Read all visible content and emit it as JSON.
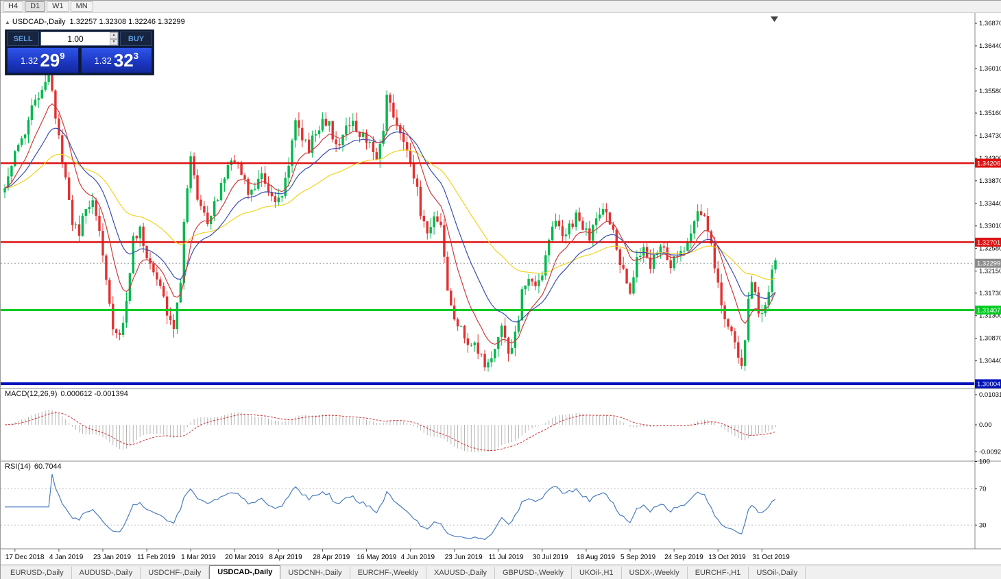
{
  "toolbar": {
    "timeframes": [
      "H4",
      "D1",
      "W1",
      "MN"
    ],
    "active_timeframe": "D1"
  },
  "chart": {
    "collapse_icon": "▲",
    "title": "USDCAD-,Daily",
    "ohlc_text": "1.32257 1.32308 1.32246 1.32299"
  },
  "trade_panel": {
    "sell_label": "SELL",
    "buy_label": "BUY",
    "volume": "1.00",
    "bid": {
      "prefix": "1.32",
      "big": "29",
      "sup": "9"
    },
    "ask": {
      "prefix": "1.32",
      "big": "32",
      "sup": "3"
    }
  },
  "chart_data": {
    "type": "candlestick",
    "symbol": "USDCAD",
    "timeframe": "Daily",
    "price_range": {
      "top": 1.37066,
      "bottom": 1.29913
    },
    "candle_count": 229,
    "close_anchors": [
      [
        0,
        1.337
      ],
      [
        2,
        1.342
      ],
      [
        4,
        1.345
      ],
      [
        6,
        1.347
      ],
      [
        8,
        1.352
      ],
      [
        10,
        1.355
      ],
      [
        12,
        1.358
      ],
      [
        13,
        1.36
      ],
      [
        14,
        1.356
      ],
      [
        16,
        1.347
      ],
      [
        18,
        1.339
      ],
      [
        20,
        1.331
      ],
      [
        22,
        1.329
      ],
      [
        24,
        1.333
      ],
      [
        26,
        1.335
      ],
      [
        28,
        1.329
      ],
      [
        30,
        1.319
      ],
      [
        32,
        1.311
      ],
      [
        34,
        1.309
      ],
      [
        36,
        1.316
      ],
      [
        38,
        1.328
      ],
      [
        40,
        1.329
      ],
      [
        42,
        1.325
      ],
      [
        44,
        1.322
      ],
      [
        46,
        1.318
      ],
      [
        48,
        1.314
      ],
      [
        50,
        1.311
      ],
      [
        52,
        1.32
      ],
      [
        53,
        1.33
      ],
      [
        55,
        1.344
      ],
      [
        56,
        1.339
      ],
      [
        58,
        1.333
      ],
      [
        60,
        1.331
      ],
      [
        62,
        1.334
      ],
      [
        64,
        1.338
      ],
      [
        66,
        1.341
      ],
      [
        68,
        1.343
      ],
      [
        70,
        1.34
      ],
      [
        72,
        1.336
      ],
      [
        74,
        1.338
      ],
      [
        76,
        1.34
      ],
      [
        78,
        1.337
      ],
      [
        80,
        1.334
      ],
      [
        82,
        1.336
      ],
      [
        84,
        1.341
      ],
      [
        86,
        1.351
      ],
      [
        88,
        1.347
      ],
      [
        90,
        1.345
      ],
      [
        92,
        1.348
      ],
      [
        94,
        1.35
      ],
      [
        96,
        1.349
      ],
      [
        98,
        1.346
      ],
      [
        100,
        1.347
      ],
      [
        102,
        1.35
      ],
      [
        104,
        1.349
      ],
      [
        106,
        1.347
      ],
      [
        108,
        1.346
      ],
      [
        110,
        1.343
      ],
      [
        112,
        1.348
      ],
      [
        113,
        1.3555
      ],
      [
        115,
        1.35
      ],
      [
        117,
        1.348
      ],
      [
        119,
        1.345
      ],
      [
        121,
        1.34
      ],
      [
        123,
        1.333
      ],
      [
        125,
        1.329
      ],
      [
        127,
        1.331
      ],
      [
        129,
        1.33
      ],
      [
        131,
        1.317
      ],
      [
        133,
        1.313
      ],
      [
        135,
        1.31
      ],
      [
        137,
        1.307
      ],
      [
        139,
        1.3085
      ],
      [
        141,
        1.305
      ],
      [
        143,
        1.3035
      ],
      [
        145,
        1.306
      ],
      [
        147,
        1.311
      ],
      [
        149,
        1.306
      ],
      [
        151,
        1.309
      ],
      [
        153,
        1.317
      ],
      [
        155,
        1.32
      ],
      [
        157,
        1.318
      ],
      [
        159,
        1.321
      ],
      [
        161,
        1.327
      ],
      [
        163,
        1.332
      ],
      [
        165,
        1.328
      ],
      [
        167,
        1.33
      ],
      [
        169,
        1.332
      ],
      [
        171,
        1.33
      ],
      [
        173,
        1.328
      ],
      [
        175,
        1.331
      ],
      [
        177,
        1.333
      ],
      [
        179,
        1.331
      ],
      [
        181,
        1.326
      ],
      [
        183,
        1.321
      ],
      [
        185,
        1.318
      ],
      [
        187,
        1.324
      ],
      [
        189,
        1.326
      ],
      [
        191,
        1.323
      ],
      [
        193,
        1.325
      ],
      [
        195,
        1.326
      ],
      [
        197,
        1.323
      ],
      [
        199,
        1.324
      ],
      [
        201,
        1.326
      ],
      [
        203,
        1.329
      ],
      [
        205,
        1.333
      ],
      [
        207,
        1.331
      ],
      [
        209,
        1.326
      ],
      [
        211,
        1.319
      ],
      [
        213,
        1.313
      ],
      [
        215,
        1.309
      ],
      [
        217,
        1.306
      ],
      [
        218,
        1.3042
      ],
      [
        219,
        1.308
      ],
      [
        220,
        1.316
      ],
      [
        221,
        1.32
      ],
      [
        223,
        1.313
      ],
      [
        225,
        1.315
      ],
      [
        227,
        1.3215
      ],
      [
        228,
        1.323
      ]
    ],
    "x_labels": [
      "17 Dec 2018",
      "4 Jan 2019",
      "23 Jan 2019",
      "11 Feb 2019",
      "1 Mar 2019",
      "20 Mar 2019",
      "8 Apr 2019",
      "28 Apr 2019",
      "16 May 2019",
      "4 Jun 2019",
      "23 Jun 2019",
      "11 Jul 2019",
      "30 Jul 2019",
      "18 Aug 2019",
      "5 Sep 2019",
      "24 Sep 2019",
      "13 Oct 2019",
      "31 Oct 2019"
    ],
    "x_label_indices": [
      3,
      16,
      29,
      42,
      55,
      68,
      81,
      94,
      107,
      120,
      133,
      146,
      159,
      172,
      185,
      198,
      211,
      224
    ],
    "price_axis_ticks": [
      "1.36870",
      "1.36440",
      "1.36010",
      "1.35580",
      "1.35160",
      "1.34730",
      "1.34300",
      "1.33870",
      "1.33440",
      "1.33010",
      "1.32580",
      "1.32150",
      "1.31730",
      "1.31300",
      "1.30870",
      "1.30440"
    ],
    "levels": [
      {
        "price": 1.34206,
        "label": "1.34206",
        "color": "#dd1111",
        "width": 2.5
      },
      {
        "price": 1.32701,
        "label": "1.32701",
        "color": "#dd1111",
        "width": 2.5
      },
      {
        "price": 1.31407,
        "label": "1.31407",
        "color": "#00cc22",
        "width": 3
      },
      {
        "price": 1.30004,
        "label": "1.30004",
        "color": "#0011bb",
        "width": 4
      }
    ],
    "current_price": {
      "value": 1.32299,
      "label": "1.32299",
      "tag_color": "#8c8c8c"
    },
    "moving_averages": [
      {
        "period": 50,
        "color": "#f2d321"
      },
      {
        "period": 21,
        "color": "#3b4db0"
      },
      {
        "period": 10,
        "color": "#cf3b3b"
      }
    ],
    "candle_colors": {
      "up": "#00b84e",
      "down": "#e33030"
    },
    "macd": {
      "label": "MACD(12,26,9)",
      "values_text": "0.000612 -0.001394",
      "fast": 12,
      "slow": 26,
      "signal_period": 9,
      "hist_color": "#b4b4b4",
      "signal_color": "#cc3333",
      "axis_labels": [
        {
          "text": "0.010311",
          "value": 0.010311
        },
        {
          "text": "0.00",
          "value": 0
        },
        {
          "text": "-0.009205",
          "value": -0.009205
        }
      ]
    },
    "rsi": {
      "label": "RSI(14)",
      "value_text": "60.7044",
      "period": 14,
      "line_color": "#4a7dc0",
      "guide_levels": [
        70,
        30
      ],
      "axis_labels": [
        {
          "text": "100",
          "value": 100
        },
        {
          "text": "70",
          "value": 70
        },
        {
          "text": "30",
          "value": 30
        }
      ]
    }
  },
  "tabs": {
    "items": [
      "EURUSD-,Daily",
      "AUDUSD-,Daily",
      "USDCHF-,Daily",
      "USDCAD-,Daily",
      "USDCNH-,Daily",
      "EURCHF-,Weekly",
      "XAUUSD-,Daily",
      "GBPUSD-,Weekly",
      "UKOil-,H1",
      "USDX-,Weekly",
      "EURCHF-,H1",
      "USOil-,Daily"
    ],
    "active": "USDCAD-,Daily"
  }
}
